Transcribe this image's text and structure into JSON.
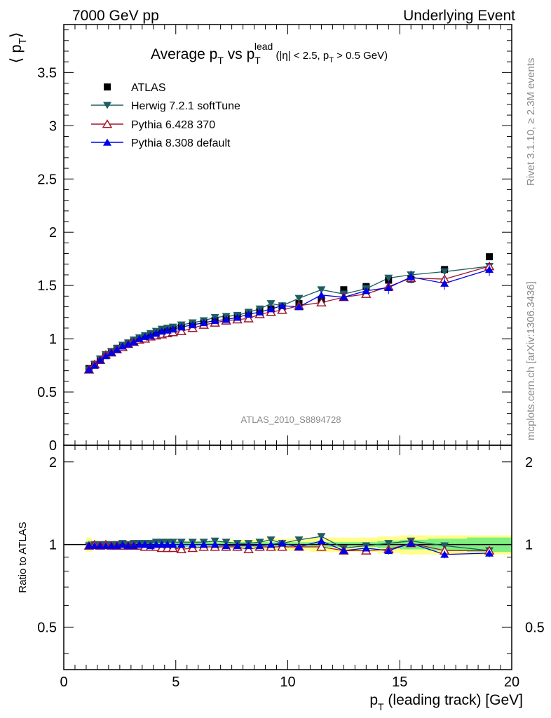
{
  "header": {
    "left": "7000 GeV pp",
    "right": "Underlying Event"
  },
  "chart_data": [
    {
      "type": "line",
      "title": "Average p_T vs p_T^lead (|η| < 2.5, p_T > 0.5 GeV)",
      "title_parts": {
        "main": "Average p",
        "sub1": "T",
        "mid": " vs p",
        "sub2": "T",
        "sup": "lead",
        "cut_a": " (|η| < 2.5, p",
        "cut_sub": "T",
        "cut_b": " > 0.5 GeV)"
      },
      "ylabel": "⟨ p_T ⟩",
      "ylabel_parts": {
        "open": "⟨ p",
        "sub": "T",
        "close": "⟩"
      },
      "xlim": [
        0,
        20
      ],
      "ylim": [
        0,
        3.95
      ],
      "yticks": [
        0,
        0.5,
        1,
        1.5,
        2,
        2.5,
        3,
        3.5
      ],
      "ytick_labels": [
        "0",
        "0.5",
        "1",
        "1.5",
        "2",
        "2.5",
        "3",
        "3.5"
      ],
      "watermark": "ATLAS_2010_S8894728",
      "legend_position": "top-left",
      "x": [
        1.125,
        1.375,
        1.625,
        1.875,
        2.125,
        2.375,
        2.625,
        2.875,
        3.125,
        3.375,
        3.625,
        3.875,
        4.125,
        4.375,
        4.625,
        4.875,
        5.25,
        5.75,
        6.25,
        6.75,
        7.25,
        7.75,
        8.25,
        8.75,
        9.25,
        9.75,
        10.5,
        11.5,
        12.5,
        13.5,
        14.5,
        15.5,
        17.0,
        19.0
      ],
      "series": [
        {
          "name": "ATLAS",
          "marker": "square",
          "color": "#000000",
          "values": [
            0.72,
            0.76,
            0.81,
            0.85,
            0.88,
            0.91,
            0.93,
            0.96,
            0.98,
            1.0,
            1.02,
            1.04,
            1.05,
            1.07,
            1.08,
            1.09,
            1.11,
            1.13,
            1.15,
            1.17,
            1.19,
            1.21,
            1.24,
            1.26,
            1.28,
            1.3,
            1.33,
            1.37,
            1.46,
            1.49,
            1.55,
            1.56,
            1.65,
            1.77
          ]
        },
        {
          "name": "Herwig 7.2.1 softTune",
          "marker": "triangle-down",
          "color": "#1f5c63",
          "values": [
            0.71,
            0.76,
            0.81,
            0.85,
            0.88,
            0.91,
            0.94,
            0.96,
            0.99,
            1.01,
            1.03,
            1.05,
            1.07,
            1.09,
            1.1,
            1.11,
            1.13,
            1.15,
            1.17,
            1.2,
            1.21,
            1.22,
            1.25,
            1.28,
            1.33,
            1.31,
            1.38,
            1.46,
            1.42,
            1.47,
            1.57,
            1.6,
            1.63,
            1.68
          ]
        },
        {
          "name": "Pythia 6.428 370",
          "marker": "triangle-up-open",
          "color": "#a0162b",
          "values": [
            0.71,
            0.76,
            0.8,
            0.85,
            0.87,
            0.9,
            0.92,
            0.95,
            0.97,
            0.99,
            1.0,
            1.02,
            1.03,
            1.04,
            1.05,
            1.06,
            1.07,
            1.1,
            1.13,
            1.15,
            1.17,
            1.18,
            1.19,
            1.23,
            1.25,
            1.27,
            1.31,
            1.34,
            1.39,
            1.42,
            1.49,
            1.57,
            1.56,
            1.68
          ]
        },
        {
          "name": "Pythia 8.308 default",
          "marker": "triangle-up",
          "color": "#0000e6",
          "values": [
            0.71,
            0.75,
            0.8,
            0.84,
            0.87,
            0.9,
            0.93,
            0.95,
            0.97,
            1.0,
            1.02,
            1.03,
            1.05,
            1.07,
            1.08,
            1.09,
            1.11,
            1.13,
            1.15,
            1.17,
            1.18,
            1.2,
            1.23,
            1.25,
            1.28,
            1.31,
            1.3,
            1.41,
            1.39,
            1.45,
            1.48,
            1.58,
            1.52,
            1.65
          ]
        }
      ]
    },
    {
      "type": "line",
      "title": "",
      "ylabel": "Ratio to ATLAS",
      "xlabel": "p_T (leading track) [GeV]",
      "xlabel_parts": {
        "a": "p",
        "sub": "T",
        "b": " (leading track) [GeV]"
      },
      "xlim": [
        0,
        20
      ],
      "xticks": [
        0,
        5,
        10,
        15,
        20
      ],
      "xtick_labels": [
        "0",
        "5",
        "10",
        "15",
        "20"
      ],
      "ylim": [
        0.35,
        2.3
      ],
      "yscale": "log",
      "yticks": [
        0.5,
        1,
        2
      ],
      "ytick_labels": [
        "0.5",
        "1",
        "2"
      ],
      "band_inner": [
        0.03,
        0.02,
        0.02,
        0.02,
        0.02,
        0.02,
        0.02,
        0.02,
        0.02,
        0.02,
        0.02,
        0.02,
        0.02,
        0.02,
        0.02,
        0.02,
        0.02,
        0.02,
        0.02,
        0.02,
        0.02,
        0.02,
        0.02,
        0.02,
        0.02,
        0.02,
        0.02,
        0.02,
        0.02,
        0.02,
        0.03,
        0.04,
        0.05,
        0.06
      ],
      "band_outer": [
        0.06,
        0.03,
        0.03,
        0.03,
        0.03,
        0.03,
        0.03,
        0.03,
        0.03,
        0.03,
        0.03,
        0.03,
        0.03,
        0.03,
        0.03,
        0.03,
        0.03,
        0.03,
        0.03,
        0.03,
        0.03,
        0.04,
        0.04,
        0.04,
        0.05,
        0.05,
        0.05,
        0.06,
        0.06,
        0.06,
        0.07,
        0.08,
        0.08,
        0.08
      ],
      "series": [
        {
          "name": "Herwig 7.2.1 softTune",
          "values": [
            0.99,
            1.0,
            1.0,
            1.0,
            1.0,
            1.0,
            1.01,
            1.0,
            1.01,
            1.01,
            1.01,
            1.01,
            1.02,
            1.02,
            1.02,
            1.02,
            1.02,
            1.02,
            1.02,
            1.03,
            1.02,
            1.01,
            1.01,
            1.02,
            1.04,
            1.01,
            1.04,
            1.07,
            0.97,
            0.99,
            1.01,
            1.03,
            0.99,
            0.95
          ]
        },
        {
          "name": "Pythia 6.428 370",
          "values": [
            0.99,
            1.0,
            0.99,
            1.0,
            0.99,
            0.99,
            0.99,
            0.99,
            0.99,
            0.99,
            0.98,
            0.98,
            0.98,
            0.97,
            0.97,
            0.97,
            0.96,
            0.97,
            0.98,
            0.98,
            0.98,
            0.98,
            0.96,
            0.98,
            0.98,
            0.98,
            0.98,
            0.98,
            0.95,
            0.95,
            0.96,
            1.01,
            0.95,
            0.95
          ]
        },
        {
          "name": "Pythia 8.308 default",
          "values": [
            0.99,
            0.99,
            0.99,
            0.99,
            0.99,
            0.99,
            1.0,
            0.99,
            0.99,
            1.0,
            1.0,
            0.99,
            1.0,
            1.0,
            1.0,
            1.0,
            1.0,
            1.0,
            1.0,
            1.0,
            0.99,
            0.99,
            0.99,
            0.99,
            1.0,
            1.01,
            0.98,
            1.03,
            0.95,
            0.97,
            0.95,
            1.01,
            0.92,
            0.93
          ]
        }
      ]
    }
  ],
  "side_labels": {
    "rivet": "Rivet 3.1.10, ≥ 2.3M events",
    "mcplots": "mcplots.cern.ch [arXiv:1306.3436]"
  }
}
